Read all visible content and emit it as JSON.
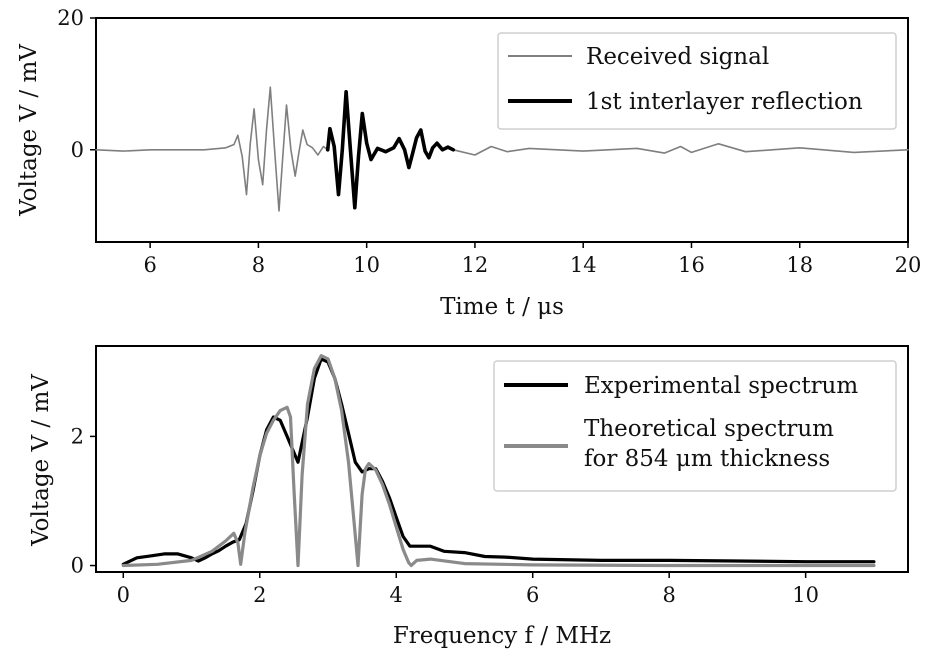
{
  "chart_data": [
    {
      "type": "line",
      "xlabel": "Time t / μs",
      "ylabel": "Voltage V / mV",
      "xlim": [
        5,
        20
      ],
      "ylim": [
        -14,
        20
      ],
      "xticks": [
        "6",
        "8",
        "10",
        "12",
        "14",
        "16",
        "18",
        "20"
      ],
      "yticks": [
        "0",
        "20"
      ],
      "legend_position": "top-right",
      "grid": false,
      "series": [
        {
          "name": "Received signal",
          "color": "#7f7f7f",
          "x": [
            5.0,
            5.5,
            6.0,
            6.5,
            7.0,
            7.4,
            7.55,
            7.62,
            7.7,
            7.78,
            7.85,
            7.92,
            8.0,
            8.08,
            8.15,
            8.22,
            8.3,
            8.38,
            8.45,
            8.52,
            8.6,
            8.68,
            8.75,
            8.82,
            8.9,
            9.0,
            9.1,
            9.2,
            9.28
          ],
          "y": [
            0.0,
            -0.2,
            0.0,
            0.0,
            0.0,
            0.3,
            0.8,
            2.2,
            -1.0,
            -6.8,
            1.0,
            6.2,
            -1.5,
            -5.3,
            3.0,
            9.5,
            0.0,
            -9.3,
            -1.0,
            6.8,
            0.0,
            -4.0,
            -0.3,
            3.0,
            0.8,
            0.3,
            -0.8,
            0.5,
            0.0
          ],
          "x_tail": [
            11.6,
            12.0,
            12.3,
            12.6,
            13.0,
            14.0,
            15.0,
            15.5,
            15.8,
            16.0,
            16.5,
            17.0,
            18.0,
            19.0,
            20.0
          ],
          "y_tail": [
            0.0,
            -0.8,
            0.5,
            -0.3,
            0.2,
            -0.2,
            0.2,
            -0.5,
            0.5,
            -0.4,
            0.9,
            -0.3,
            0.3,
            -0.4,
            0.0
          ]
        },
        {
          "name": "1st interlayer reflection",
          "color": "#000000",
          "x": [
            9.28,
            9.32,
            9.4,
            9.48,
            9.55,
            9.62,
            9.7,
            9.78,
            9.85,
            9.92,
            10.0,
            10.08,
            10.2,
            10.35,
            10.5,
            10.6,
            10.7,
            10.78,
            10.85,
            10.92,
            11.0,
            11.08,
            11.15,
            11.22,
            11.3,
            11.4,
            11.5,
            11.6
          ],
          "y": [
            0.0,
            3.2,
            0.5,
            -6.8,
            0.0,
            8.8,
            0.0,
            -8.8,
            -1.0,
            5.5,
            1.0,
            -1.5,
            0.2,
            -0.3,
            0.3,
            1.7,
            0.0,
            -2.7,
            -0.5,
            1.8,
            3.0,
            -0.2,
            -1.2,
            0.3,
            1.0,
            0.0,
            0.4,
            0.0
          ]
        }
      ]
    },
    {
      "type": "line",
      "xlabel": "Frequency f / MHz",
      "ylabel": "Voltage V / mV",
      "xlim": [
        -0.4,
        11.5
      ],
      "ylim": [
        -0.1,
        3.4
      ],
      "xticks": [
        "0",
        "2",
        "4",
        "6",
        "8",
        "10"
      ],
      "yticks": [
        "0",
        "2"
      ],
      "legend_position": "top-right",
      "grid": false,
      "series": [
        {
          "name": "Experimental spectrum",
          "color": "#000000",
          "x": [
            0.0,
            0.2,
            0.4,
            0.6,
            0.8,
            1.0,
            1.1,
            1.2,
            1.3,
            1.4,
            1.5,
            1.6,
            1.7,
            1.8,
            1.9,
            2.0,
            2.1,
            2.2,
            2.3,
            2.4,
            2.5,
            2.56,
            2.6,
            2.7,
            2.8,
            2.9,
            3.0,
            3.1,
            3.2,
            3.3,
            3.4,
            3.5,
            3.6,
            3.7,
            3.8,
            3.9,
            4.0,
            4.1,
            4.2,
            4.3,
            4.5,
            4.7,
            5.0,
            5.3,
            5.6,
            6.0,
            7.0,
            8.0,
            9.0,
            10.0,
            11.0
          ],
          "y": [
            0.02,
            0.12,
            0.15,
            0.18,
            0.18,
            0.12,
            0.07,
            0.12,
            0.18,
            0.23,
            0.3,
            0.36,
            0.4,
            0.65,
            1.15,
            1.7,
            2.1,
            2.3,
            2.25,
            2.0,
            1.75,
            1.6,
            1.8,
            2.3,
            2.9,
            3.2,
            3.15,
            2.9,
            2.5,
            2.05,
            1.6,
            1.45,
            1.5,
            1.5,
            1.3,
            1.05,
            0.75,
            0.45,
            0.3,
            0.3,
            0.3,
            0.22,
            0.2,
            0.14,
            0.13,
            0.1,
            0.08,
            0.08,
            0.07,
            0.06,
            0.06
          ]
        },
        {
          "name": "Theoretical spectrum\nfor 854 μm thickness",
          "color": "#8a8a8a",
          "x": [
            0.0,
            0.5,
            1.0,
            1.3,
            1.5,
            1.62,
            1.68,
            1.72,
            1.78,
            1.9,
            2.0,
            2.1,
            2.2,
            2.3,
            2.4,
            2.45,
            2.5,
            2.56,
            2.62,
            2.7,
            2.8,
            2.9,
            3.0,
            3.1,
            3.2,
            3.3,
            3.38,
            3.44,
            3.5,
            3.55,
            3.6,
            3.7,
            3.8,
            3.9,
            4.0,
            4.1,
            4.18,
            4.22,
            4.3,
            4.5,
            5.0,
            6.0,
            8.0,
            11.0
          ],
          "y": [
            0.0,
            0.02,
            0.08,
            0.22,
            0.38,
            0.5,
            0.35,
            0.02,
            0.5,
            1.2,
            1.7,
            2.05,
            2.25,
            2.4,
            2.45,
            2.3,
            1.2,
            0.0,
            1.4,
            2.5,
            3.05,
            3.25,
            3.2,
            2.9,
            2.4,
            1.6,
            0.7,
            0.0,
            1.1,
            1.5,
            1.58,
            1.48,
            1.25,
            0.95,
            0.6,
            0.25,
            0.05,
            0.0,
            0.08,
            0.1,
            0.03,
            0.01,
            0.0,
            0.0
          ]
        }
      ]
    }
  ]
}
